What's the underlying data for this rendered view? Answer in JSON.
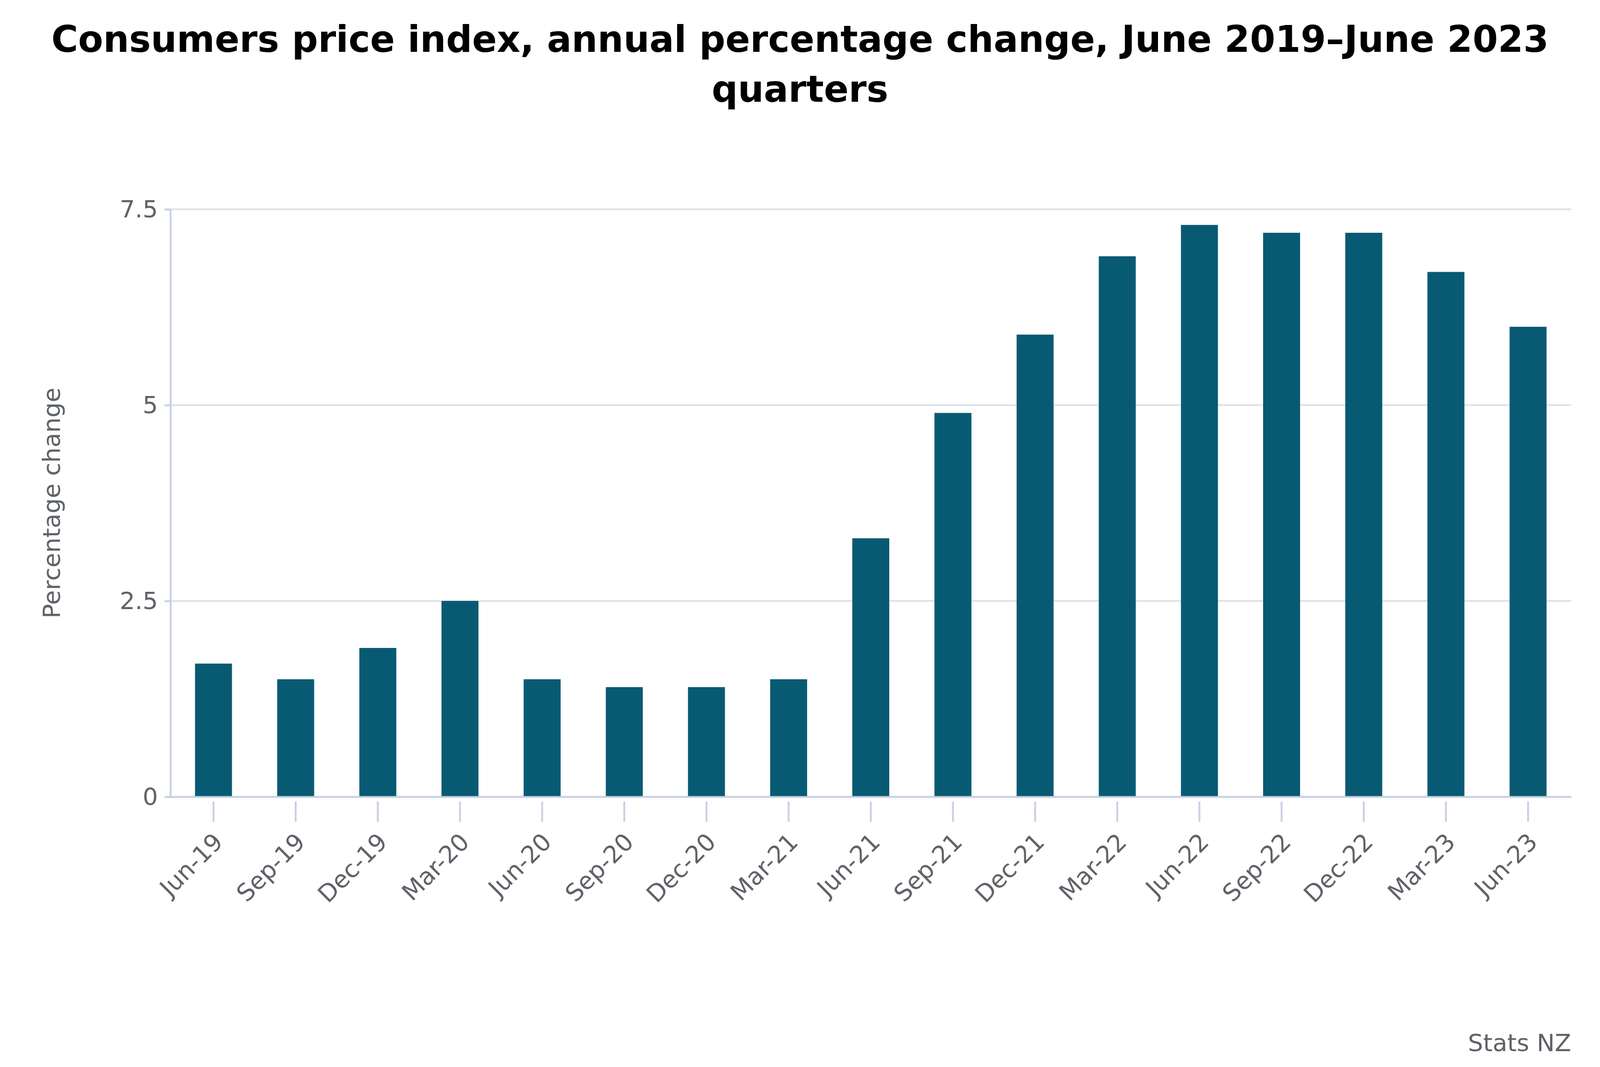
{
  "chart_data": {
    "type": "bar",
    "title": "Consumers price index, annual percentage change, June 2019–June 2023 quarters",
    "y_label": "Percentage change",
    "source": "Stats NZ",
    "categories": [
      "Jun-19",
      "Sep-19",
      "Dec-19",
      "Mar-20",
      "Jun-20",
      "Sep-20",
      "Dec-20",
      "Mar-21",
      "Jun-21",
      "Sep-21",
      "Dec-21",
      "Mar-22",
      "Jun-22",
      "Sep-22",
      "Dec-22",
      "Mar-23",
      "Jun-23"
    ],
    "values": [
      1.7,
      1.5,
      1.9,
      2.5,
      1.5,
      1.4,
      1.4,
      1.5,
      3.3,
      4.9,
      5.9,
      6.9,
      7.3,
      7.2,
      7.2,
      6.7,
      6.0
    ],
    "color": "#085a73",
    "ylim": [
      0,
      7.5
    ],
    "yticks": [
      0,
      2.5,
      5,
      7.5
    ],
    "grid": true
  }
}
